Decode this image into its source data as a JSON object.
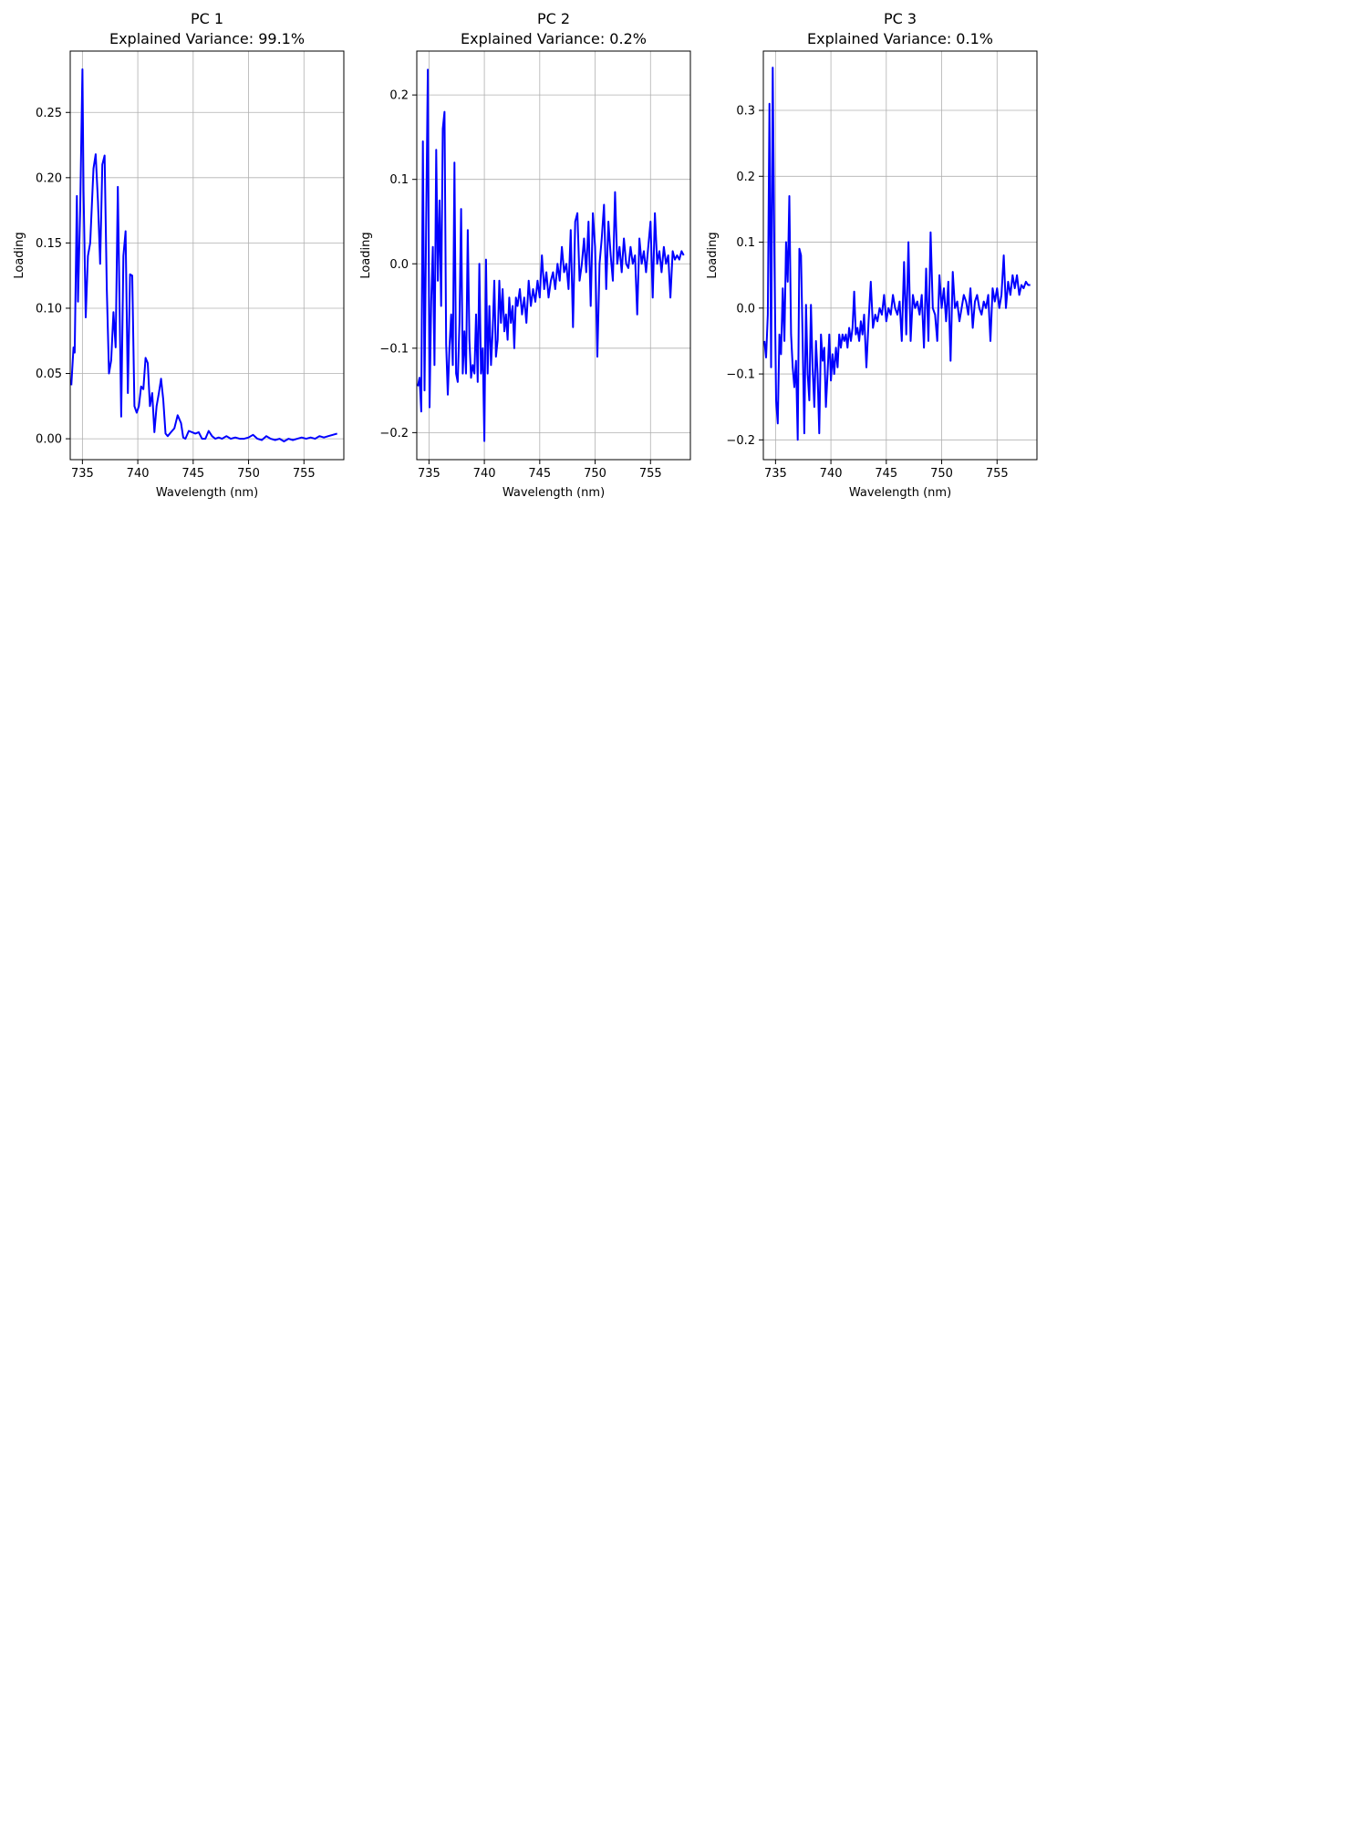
{
  "chart_data": [
    {
      "type": "line",
      "title": "PC 1",
      "subtitle": "Explained Variance: 99.1%",
      "xlabel": "Wavelength (nm)",
      "ylabel": "Loading",
      "xlim": [
        733.9,
        758.6
      ],
      "ylim": [
        -0.016,
        0.297
      ],
      "xticks": [
        735,
        740,
        745,
        750,
        755
      ],
      "xtick_labels": [
        "735",
        "740",
        "745",
        "750",
        "755"
      ],
      "yticks": [
        0.0,
        0.05,
        0.1,
        0.15,
        0.2,
        0.25
      ],
      "ytick_labels": [
        "0.00",
        "0.05",
        "0.10",
        "0.15",
        "0.20",
        "0.25"
      ],
      "grid": true,
      "line_color": "#0000ff",
      "series": [
        {
          "x": [
            734.0,
            734.2,
            734.3,
            734.5,
            734.6,
            734.8,
            735.0,
            735.1,
            735.3,
            735.5,
            735.7,
            736.0,
            736.2,
            736.4,
            736.6,
            736.8,
            737.0,
            737.2,
            737.4,
            737.6,
            737.8,
            738.0,
            738.2,
            738.5,
            738.7,
            738.9,
            739.1,
            739.3,
            739.5,
            739.7,
            739.9,
            740.1,
            740.3,
            740.5,
            740.7,
            740.9,
            741.1,
            741.3,
            741.5,
            741.7,
            741.9,
            742.1,
            742.3,
            742.5,
            742.7,
            743.0,
            743.3,
            743.6,
            743.9,
            744.1,
            744.3,
            744.6,
            744.9,
            745.2,
            745.5,
            745.8,
            746.1,
            746.4,
            746.7,
            747.0,
            747.3,
            747.6,
            748.0,
            748.4,
            748.8,
            749.2,
            749.6,
            750.0,
            750.4,
            750.8,
            751.2,
            751.6,
            752.0,
            752.4,
            752.8,
            753.2,
            753.6,
            754.0,
            754.4,
            754.8,
            755.2,
            755.6,
            756.0,
            756.4,
            756.8,
            757.2,
            757.6,
            758.0
          ],
          "y": [
            0.041,
            0.07,
            0.066,
            0.186,
            0.105,
            0.175,
            0.283,
            0.19,
            0.093,
            0.14,
            0.15,
            0.207,
            0.218,
            0.182,
            0.134,
            0.21,
            0.217,
            0.115,
            0.05,
            0.06,
            0.097,
            0.07,
            0.193,
            0.017,
            0.14,
            0.159,
            0.035,
            0.126,
            0.125,
            0.025,
            0.02,
            0.025,
            0.04,
            0.038,
            0.062,
            0.058,
            0.025,
            0.035,
            0.005,
            0.025,
            0.035,
            0.046,
            0.03,
            0.004,
            0.002,
            0.005,
            0.008,
            0.018,
            0.012,
            0.001,
            0.0,
            0.006,
            0.005,
            0.004,
            0.005,
            0.0,
            0.0,
            0.006,
            0.002,
            0.0,
            0.001,
            0.0,
            0.002,
            0.0,
            0.001,
            0.0,
            0.0,
            0.001,
            0.003,
            0.0,
            -0.001,
            0.002,
            0.0,
            -0.001,
            0.0,
            -0.002,
            0.0,
            -0.001,
            0.0,
            0.001,
            0.0,
            0.001,
            0.0,
            0.002,
            0.001,
            0.002,
            0.003,
            0.004
          ]
        }
      ]
    },
    {
      "type": "line",
      "title": "PC 2",
      "subtitle": "Explained Variance: 0.2%",
      "xlabel": "Wavelength (nm)",
      "ylabel": "Loading",
      "xlim": [
        733.9,
        758.6
      ],
      "ylim": [
        -0.232,
        0.252
      ],
      "xticks": [
        735,
        740,
        745,
        750,
        755
      ],
      "xtick_labels": [
        "735",
        "740",
        "745",
        "750",
        "755"
      ],
      "yticks": [
        -0.2,
        -0.1,
        0.0,
        0.1,
        0.2
      ],
      "ytick_labels": [
        "−0.2",
        "−0.1",
        "0.0",
        "0.1",
        "0.2"
      ],
      "grid": true,
      "line_color": "#0000ff",
      "series": [
        {
          "x": [
            734.0,
            734.15,
            734.3,
            734.45,
            734.6,
            734.75,
            734.9,
            735.05,
            735.2,
            735.35,
            735.5,
            735.65,
            735.8,
            735.95,
            736.1,
            736.25,
            736.4,
            736.55,
            736.7,
            736.85,
            737.0,
            737.15,
            737.3,
            737.45,
            737.6,
            737.75,
            737.9,
            738.05,
            738.2,
            738.35,
            738.5,
            738.65,
            738.8,
            738.95,
            739.1,
            739.25,
            739.4,
            739.55,
            739.7,
            739.85,
            740.0,
            740.15,
            740.3,
            740.45,
            740.6,
            740.75,
            740.9,
            741.05,
            741.2,
            741.35,
            741.5,
            741.65,
            741.8,
            741.95,
            742.1,
            742.25,
            742.4,
            742.55,
            742.7,
            742.85,
            743.0,
            743.2,
            743.4,
            743.6,
            743.8,
            744.0,
            744.2,
            744.4,
            744.6,
            744.8,
            745.0,
            745.2,
            745.4,
            745.6,
            745.8,
            746.0,
            746.2,
            746.4,
            746.6,
            746.8,
            747.0,
            747.2,
            747.4,
            747.6,
            747.8,
            748.0,
            748.2,
            748.4,
            748.6,
            748.8,
            749.0,
            749.2,
            749.4,
            749.6,
            749.8,
            750.0,
            750.2,
            750.4,
            750.6,
            750.8,
            751.0,
            751.2,
            751.4,
            751.6,
            751.8,
            752.0,
            752.2,
            752.4,
            752.6,
            752.8,
            753.0,
            753.2,
            753.4,
            753.6,
            753.8,
            754.0,
            754.2,
            754.4,
            754.6,
            754.8,
            755.0,
            755.2,
            755.4,
            755.6,
            755.8,
            756.0,
            756.2,
            756.4,
            756.6,
            756.8,
            757.0,
            757.2,
            757.4,
            757.6,
            757.8,
            758.0
          ],
          "y": [
            -0.145,
            -0.135,
            -0.175,
            0.145,
            -0.15,
            0.05,
            0.23,
            -0.17,
            -0.045,
            0.02,
            -0.12,
            0.135,
            -0.02,
            0.075,
            -0.05,
            0.16,
            0.18,
            -0.095,
            -0.155,
            -0.1,
            -0.06,
            -0.12,
            0.12,
            -0.13,
            -0.14,
            -0.07,
            0.065,
            -0.13,
            -0.08,
            -0.13,
            0.04,
            -0.09,
            -0.135,
            -0.12,
            -0.13,
            -0.06,
            -0.14,
            0.0,
            -0.13,
            -0.1,
            -0.21,
            0.005,
            -0.13,
            -0.05,
            -0.12,
            -0.08,
            -0.02,
            -0.11,
            -0.09,
            -0.02,
            -0.07,
            -0.03,
            -0.08,
            -0.06,
            -0.09,
            -0.04,
            -0.07,
            -0.05,
            -0.1,
            -0.04,
            -0.05,
            -0.03,
            -0.06,
            -0.04,
            -0.07,
            -0.02,
            -0.05,
            -0.03,
            -0.045,
            -0.02,
            -0.04,
            0.01,
            -0.03,
            -0.01,
            -0.04,
            -0.02,
            -0.01,
            -0.03,
            0.0,
            -0.02,
            0.02,
            -0.01,
            0.0,
            -0.03,
            0.04,
            -0.075,
            0.05,
            0.06,
            -0.02,
            0.0,
            0.03,
            -0.01,
            0.05,
            -0.05,
            0.06,
            0.02,
            -0.11,
            0.0,
            0.03,
            0.07,
            -0.03,
            0.05,
            0.01,
            -0.02,
            0.085,
            0.0,
            0.02,
            -0.01,
            0.03,
            0.0,
            -0.005,
            0.02,
            0.0,
            0.01,
            -0.06,
            0.03,
            0.0,
            0.015,
            -0.01,
            0.02,
            0.05,
            -0.04,
            0.06,
            0.0,
            0.015,
            -0.01,
            0.02,
            0.0,
            0.01,
            -0.04,
            0.015,
            0.005,
            0.01,
            0.005,
            0.015,
            0.01
          ]
        }
      ]
    },
    {
      "type": "line",
      "title": "PC 3",
      "subtitle": "Explained Variance: 0.1%",
      "xlabel": "Wavelength (nm)",
      "ylabel": "Loading",
      "xlim": [
        733.9,
        758.6
      ],
      "ylim": [
        -0.23,
        0.39
      ],
      "xticks": [
        735,
        740,
        745,
        750,
        755
      ],
      "xtick_labels": [
        "735",
        "740",
        "745",
        "750",
        "755"
      ],
      "yticks": [
        -0.2,
        -0.1,
        0.0,
        0.1,
        0.2,
        0.3
      ],
      "ytick_labels": [
        "−0.2",
        "−0.1",
        "0.0",
        "0.1",
        "0.2",
        "0.3"
      ],
      "grid": true,
      "line_color": "#0000ff",
      "series": [
        {
          "x": [
            734.0,
            734.15,
            734.3,
            734.45,
            734.6,
            734.75,
            734.9,
            735.05,
            735.2,
            735.35,
            735.5,
            735.65,
            735.8,
            735.95,
            736.1,
            736.25,
            736.4,
            736.55,
            736.7,
            736.85,
            737.0,
            737.15,
            737.3,
            737.45,
            737.6,
            737.75,
            737.9,
            738.05,
            738.2,
            738.35,
            738.5,
            738.65,
            738.8,
            738.95,
            739.1,
            739.25,
            739.4,
            739.55,
            739.7,
            739.85,
            740.0,
            740.15,
            740.3,
            740.45,
            740.6,
            740.75,
            740.9,
            741.05,
            741.2,
            741.35,
            741.5,
            741.65,
            741.8,
            741.95,
            742.1,
            742.25,
            742.4,
            742.55,
            742.7,
            742.85,
            743.0,
            743.2,
            743.4,
            743.6,
            743.8,
            744.0,
            744.2,
            744.4,
            744.6,
            744.8,
            745.0,
            745.2,
            745.4,
            745.6,
            745.8,
            746.0,
            746.2,
            746.4,
            746.6,
            746.8,
            747.0,
            747.2,
            747.4,
            747.6,
            747.8,
            748.0,
            748.2,
            748.4,
            748.6,
            748.8,
            749.0,
            749.2,
            749.4,
            749.6,
            749.8,
            750.0,
            750.2,
            750.4,
            750.6,
            750.8,
            751.0,
            751.2,
            751.4,
            751.6,
            751.8,
            752.0,
            752.2,
            752.4,
            752.6,
            752.8,
            753.0,
            753.2,
            753.4,
            753.6,
            753.8,
            754.0,
            754.2,
            754.4,
            754.6,
            754.8,
            755.0,
            755.2,
            755.4,
            755.6,
            755.8,
            756.0,
            756.2,
            756.4,
            756.6,
            756.8,
            757.0,
            757.2,
            757.4,
            757.6,
            757.8,
            758.0
          ],
          "y": [
            -0.05,
            -0.075,
            -0.01,
            0.31,
            -0.09,
            0.365,
            0.08,
            -0.14,
            -0.175,
            -0.04,
            -0.07,
            0.03,
            -0.05,
            0.1,
            0.04,
            0.17,
            -0.04,
            -0.09,
            -0.12,
            -0.08,
            -0.2,
            0.09,
            0.08,
            -0.05,
            -0.19,
            0.005,
            -0.1,
            -0.14,
            0.005,
            -0.09,
            -0.15,
            -0.05,
            -0.1,
            -0.19,
            -0.04,
            -0.08,
            -0.06,
            -0.15,
            -0.1,
            -0.04,
            -0.11,
            -0.07,
            -0.1,
            -0.06,
            -0.09,
            -0.04,
            -0.06,
            -0.04,
            -0.05,
            -0.04,
            -0.06,
            -0.03,
            -0.05,
            -0.03,
            0.025,
            -0.04,
            -0.03,
            -0.05,
            -0.02,
            -0.04,
            -0.01,
            -0.09,
            -0.02,
            0.04,
            -0.03,
            -0.01,
            -0.02,
            0.0,
            -0.01,
            0.02,
            -0.02,
            0.0,
            -0.01,
            0.02,
            0.0,
            -0.01,
            0.01,
            -0.05,
            0.07,
            -0.04,
            0.1,
            -0.05,
            0.02,
            0.0,
            0.01,
            -0.01,
            0.02,
            -0.06,
            0.06,
            -0.05,
            0.115,
            0.0,
            -0.01,
            -0.05,
            0.05,
            0.0,
            0.03,
            -0.02,
            0.04,
            -0.08,
            0.055,
            0.0,
            0.01,
            -0.02,
            0.0,
            0.02,
            0.01,
            -0.01,
            0.03,
            -0.03,
            0.01,
            0.02,
            0.0,
            -0.01,
            0.01,
            0.0,
            0.02,
            -0.05,
            0.03,
            0.01,
            0.03,
            0.0,
            0.02,
            0.08,
            0.0,
            0.04,
            0.02,
            0.05,
            0.03,
            0.05,
            0.02,
            0.035,
            0.03,
            0.04,
            0.035,
            0.035
          ]
        }
      ]
    }
  ]
}
